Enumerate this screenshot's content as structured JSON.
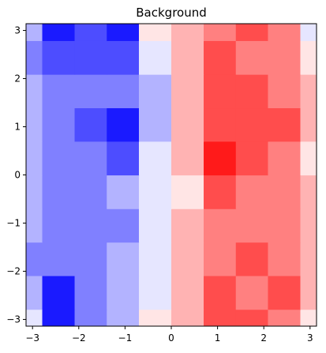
{
  "chart_data": {
    "type": "heatmap",
    "title": "Background",
    "xlabel": "",
    "ylabel": "",
    "xlim": [
      -3.14,
      3.14
    ],
    "ylim": [
      -3.14,
      3.14
    ],
    "xticks": [
      -3,
      -2,
      -1,
      0,
      1,
      2,
      3
    ],
    "yticks": [
      -3,
      -2,
      -1,
      0,
      1,
      2,
      3
    ],
    "xtick_labels": [
      "−3",
      "−2",
      "−1",
      "0",
      "1",
      "2",
      "3"
    ],
    "ytick_labels": [
      "−3",
      "−2",
      "−1",
      "0",
      "1",
      "2",
      "3"
    ],
    "grid": false,
    "colormap": "bwr",
    "vlim": [
      -1,
      1
    ],
    "levels": 10,
    "x": [
      -3.14,
      -2.44,
      -1.74,
      -1.05,
      -0.35,
      0.35,
      1.05,
      1.74,
      2.44,
      3.14
    ],
    "y": [
      -3.14,
      -2.44,
      -1.74,
      -1.05,
      -0.35,
      0.35,
      1.05,
      1.74,
      2.44,
      3.14
    ],
    "z": [
      [
        -0.2,
        -0.9,
        -0.6,
        -0.3,
        0.0,
        0.2,
        0.7,
        0.6,
        0.5,
        0.1
      ],
      [
        -0.3,
        -0.8,
        -0.6,
        -0.4,
        -0.1,
        0.3,
        0.6,
        0.5,
        0.7,
        0.2
      ],
      [
        -0.5,
        -0.6,
        -0.5,
        -0.4,
        -0.1,
        0.2,
        0.5,
        0.6,
        0.5,
        0.2
      ],
      [
        -0.3,
        -0.6,
        -0.6,
        -0.5,
        -0.2,
        0.3,
        0.5,
        0.5,
        0.4,
        0.2
      ],
      [
        -0.3,
        -0.5,
        -0.6,
        -0.4,
        -0.2,
        0.1,
        0.6,
        0.5,
        0.4,
        0.2
      ],
      [
        -0.4,
        -0.6,
        -0.6,
        -0.7,
        -0.2,
        0.2,
        0.8,
        0.6,
        0.4,
        0.1
      ],
      [
        -0.3,
        -0.6,
        -0.7,
        -0.8,
        -0.3,
        0.2,
        0.6,
        0.6,
        0.7,
        0.3
      ],
      [
        -0.3,
        -0.5,
        -0.6,
        -0.6,
        -0.3,
        0.3,
        0.7,
        0.6,
        0.5,
        0.2
      ],
      [
        -0.5,
        -0.7,
        -0.7,
        -0.7,
        -0.2,
        0.3,
        0.6,
        0.5,
        0.4,
        0.1
      ],
      [
        -0.4,
        -0.8,
        -0.7,
        -0.9,
        0.0,
        0.2,
        0.4,
        0.6,
        0.5,
        -0.2
      ]
    ]
  }
}
